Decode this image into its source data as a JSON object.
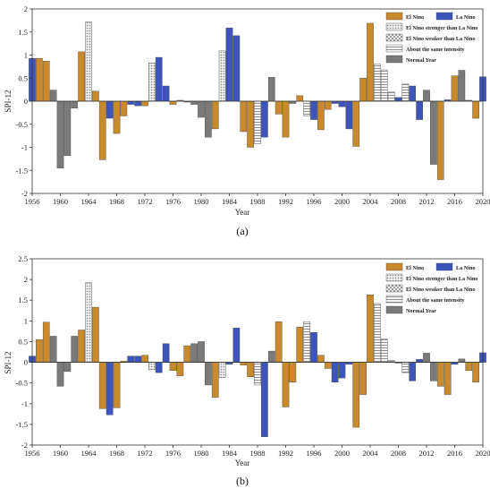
{
  "panel_labels": [
    "(a)",
    "(b)"
  ],
  "category_legend": [
    {
      "key": "elnino",
      "label": "El Nino",
      "color": "#C98A2E"
    },
    {
      "key": "lanina",
      "label": "La Nino",
      "color": "#3D55BA"
    },
    {
      "key": "stronger",
      "label": "El Nino stronger than La Nino",
      "color": "#D4D4D4",
      "pattern": "dots"
    },
    {
      "key": "weaker",
      "label": "El Nino weaker than La Nino",
      "color": "#BDBDBD",
      "pattern": "checker"
    },
    {
      "key": "same",
      "label": "About the same intensity",
      "color": "#CFCFCF",
      "pattern": "hlines"
    },
    {
      "key": "normal",
      "label": "Normal Year",
      "color": "#7A7A7A"
    }
  ],
  "chart_data": [
    {
      "type": "bar",
      "panel": "(a)",
      "xlabel": "Year",
      "ylabel": "SPI-12",
      "ylim": [
        -2,
        2
      ],
      "yticks": [
        -2,
        -1.5,
        -1,
        -0.5,
        0,
        0.5,
        1,
        1.5,
        2
      ],
      "xlim": [
        1956,
        2020
      ],
      "xticks": [
        1956,
        1960,
        1964,
        1968,
        1972,
        1976,
        1980,
        1984,
        1988,
        1992,
        1996,
        2000,
        2004,
        2008,
        2012,
        2016,
        2020
      ],
      "bars": [
        {
          "year": 1956,
          "value": 0.93,
          "category": "lanina"
        },
        {
          "year": 1957,
          "value": 0.93,
          "category": "elnino"
        },
        {
          "year": 1958,
          "value": 0.87,
          "category": "elnino"
        },
        {
          "year": 1959,
          "value": 0.24,
          "category": "normal"
        },
        {
          "year": 1960,
          "value": -1.45,
          "category": "normal"
        },
        {
          "year": 1961,
          "value": -1.18,
          "category": "normal"
        },
        {
          "year": 1962,
          "value": -0.15,
          "category": "normal"
        },
        {
          "year": 1963,
          "value": 1.07,
          "category": "elnino"
        },
        {
          "year": 1964,
          "value": 1.72,
          "category": "stronger"
        },
        {
          "year": 1965,
          "value": 0.22,
          "category": "elnino"
        },
        {
          "year": 1966,
          "value": -1.27,
          "category": "elnino"
        },
        {
          "year": 1967,
          "value": -0.37,
          "category": "lanina"
        },
        {
          "year": 1968,
          "value": -0.7,
          "category": "elnino"
        },
        {
          "year": 1969,
          "value": -0.32,
          "category": "elnino"
        },
        {
          "year": 1970,
          "value": -0.07,
          "category": "lanina"
        },
        {
          "year": 1971,
          "value": -0.1,
          "category": "lanina"
        },
        {
          "year": 1972,
          "value": -0.1,
          "category": "elnino"
        },
        {
          "year": 1973,
          "value": 0.83,
          "category": "stronger"
        },
        {
          "year": 1974,
          "value": 0.95,
          "category": "lanina"
        },
        {
          "year": 1975,
          "value": 0.33,
          "category": "lanina"
        },
        {
          "year": 1976,
          "value": -0.07,
          "category": "elnino"
        },
        {
          "year": 1977,
          "value": 0.02,
          "category": "normal"
        },
        {
          "year": 1978,
          "value": -0.02,
          "category": "normal"
        },
        {
          "year": 1979,
          "value": -0.07,
          "category": "normal"
        },
        {
          "year": 1980,
          "value": -0.35,
          "category": "normal"
        },
        {
          "year": 1981,
          "value": -0.78,
          "category": "normal"
        },
        {
          "year": 1982,
          "value": -0.6,
          "category": "elnino"
        },
        {
          "year": 1983,
          "value": 1.09,
          "category": "stronger"
        },
        {
          "year": 1984,
          "value": 1.59,
          "category": "lanina"
        },
        {
          "year": 1985,
          "value": 1.42,
          "category": "lanina"
        },
        {
          "year": 1986,
          "value": -0.66,
          "category": "elnino"
        },
        {
          "year": 1987,
          "value": -1.0,
          "category": "elnino"
        },
        {
          "year": 1988,
          "value": -0.92,
          "category": "same"
        },
        {
          "year": 1989,
          "value": -0.78,
          "category": "lanina"
        },
        {
          "year": 1990,
          "value": 0.52,
          "category": "normal"
        },
        {
          "year": 1991,
          "value": -0.28,
          "category": "elnino"
        },
        {
          "year": 1992,
          "value": -0.78,
          "category": "elnino"
        },
        {
          "year": 1993,
          "value": -0.05,
          "category": "normal"
        },
        {
          "year": 1994,
          "value": 0.12,
          "category": "elnino"
        },
        {
          "year": 1995,
          "value": -0.32,
          "category": "same"
        },
        {
          "year": 1996,
          "value": -0.4,
          "category": "lanina"
        },
        {
          "year": 1997,
          "value": -0.62,
          "category": "elnino"
        },
        {
          "year": 1998,
          "value": -0.18,
          "category": "elnino"
        },
        {
          "year": 1999,
          "value": -0.05,
          "category": "lanina"
        },
        {
          "year": 2000,
          "value": -0.12,
          "category": "lanina"
        },
        {
          "year": 2001,
          "value": -0.6,
          "category": "lanina"
        },
        {
          "year": 2002,
          "value": -0.98,
          "category": "elnino"
        },
        {
          "year": 2003,
          "value": 0.5,
          "category": "elnino"
        },
        {
          "year": 2004,
          "value": 1.69,
          "category": "elnino"
        },
        {
          "year": 2005,
          "value": 0.8,
          "category": "same"
        },
        {
          "year": 2006,
          "value": 0.68,
          "category": "same"
        },
        {
          "year": 2007,
          "value": 0.2,
          "category": "same"
        },
        {
          "year": 2008,
          "value": 0.08,
          "category": "lanina"
        },
        {
          "year": 2009,
          "value": 0.37,
          "category": "same"
        },
        {
          "year": 2010,
          "value": 0.33,
          "category": "lanina"
        },
        {
          "year": 2011,
          "value": -0.4,
          "category": "lanina"
        },
        {
          "year": 2012,
          "value": 0.24,
          "category": "normal"
        },
        {
          "year": 2013,
          "value": -1.37,
          "category": "normal"
        },
        {
          "year": 2014,
          "value": -1.7,
          "category": "elnino"
        },
        {
          "year": 2015,
          "value": 0.03,
          "category": "lanina"
        },
        {
          "year": 2016,
          "value": 0.55,
          "category": "elnino"
        },
        {
          "year": 2017,
          "value": 0.67,
          "category": "normal"
        },
        {
          "year": 2018,
          "value": 0.02,
          "category": "normal"
        },
        {
          "year": 2019,
          "value": -0.37,
          "category": "elnino"
        },
        {
          "year": 2020,
          "value": 0.53,
          "category": "lanina"
        }
      ]
    },
    {
      "type": "bar",
      "panel": "(b)",
      "xlabel": "Year",
      "ylabel": "SPI-12",
      "ylim": [
        -2,
        2.5
      ],
      "yticks": [
        -2,
        -1.5,
        -1,
        -0.5,
        0,
        0.5,
        1,
        1.5,
        2,
        2.5
      ],
      "xlim": [
        1956,
        2020
      ],
      "xticks": [
        1956,
        1960,
        1964,
        1968,
        1972,
        1976,
        1980,
        1984,
        1988,
        1992,
        1996,
        2000,
        2004,
        2008,
        2012,
        2016,
        2020
      ],
      "bars": [
        {
          "year": 1956,
          "value": 0.15,
          "category": "lanina"
        },
        {
          "year": 1957,
          "value": 0.55,
          "category": "elnino"
        },
        {
          "year": 1958,
          "value": 0.97,
          "category": "elnino"
        },
        {
          "year": 1959,
          "value": 0.63,
          "category": "normal"
        },
        {
          "year": 1960,
          "value": -0.58,
          "category": "normal"
        },
        {
          "year": 1961,
          "value": -0.22,
          "category": "normal"
        },
        {
          "year": 1962,
          "value": 0.63,
          "category": "normal"
        },
        {
          "year": 1963,
          "value": 0.78,
          "category": "elnino"
        },
        {
          "year": 1964,
          "value": 1.92,
          "category": "stronger"
        },
        {
          "year": 1965,
          "value": 1.33,
          "category": "elnino"
        },
        {
          "year": 1966,
          "value": -1.12,
          "category": "elnino"
        },
        {
          "year": 1967,
          "value": -1.27,
          "category": "lanina"
        },
        {
          "year": 1968,
          "value": -1.1,
          "category": "elnino"
        },
        {
          "year": 1969,
          "value": 0.03,
          "category": "elnino"
        },
        {
          "year": 1970,
          "value": 0.15,
          "category": "lanina"
        },
        {
          "year": 1971,
          "value": 0.15,
          "category": "lanina"
        },
        {
          "year": 1972,
          "value": 0.17,
          "category": "elnino"
        },
        {
          "year": 1973,
          "value": -0.18,
          "category": "stronger"
        },
        {
          "year": 1974,
          "value": -0.25,
          "category": "lanina"
        },
        {
          "year": 1975,
          "value": 0.45,
          "category": "lanina"
        },
        {
          "year": 1976,
          "value": -0.2,
          "category": "elnino"
        },
        {
          "year": 1977,
          "value": -0.33,
          "category": "elnino"
        },
        {
          "year": 1978,
          "value": 0.4,
          "category": "elnino"
        },
        {
          "year": 1979,
          "value": 0.45,
          "category": "normal"
        },
        {
          "year": 1980,
          "value": 0.5,
          "category": "normal"
        },
        {
          "year": 1981,
          "value": -0.55,
          "category": "normal"
        },
        {
          "year": 1982,
          "value": -0.85,
          "category": "elnino"
        },
        {
          "year": 1983,
          "value": -0.37,
          "category": "stronger"
        },
        {
          "year": 1984,
          "value": -0.05,
          "category": "lanina"
        },
        {
          "year": 1985,
          "value": 0.83,
          "category": "lanina"
        },
        {
          "year": 1986,
          "value": -0.07,
          "category": "elnino"
        },
        {
          "year": 1987,
          "value": -0.35,
          "category": "elnino"
        },
        {
          "year": 1988,
          "value": -0.55,
          "category": "same"
        },
        {
          "year": 1989,
          "value": -1.8,
          "category": "lanina"
        },
        {
          "year": 1990,
          "value": 0.27,
          "category": "normal"
        },
        {
          "year": 1991,
          "value": 0.98,
          "category": "elnino"
        },
        {
          "year": 1992,
          "value": -1.08,
          "category": "elnino"
        },
        {
          "year": 1993,
          "value": -0.48,
          "category": "elnino"
        },
        {
          "year": 1994,
          "value": 0.85,
          "category": "elnino"
        },
        {
          "year": 1995,
          "value": 0.98,
          "category": "same"
        },
        {
          "year": 1996,
          "value": 0.72,
          "category": "lanina"
        },
        {
          "year": 1997,
          "value": 0.17,
          "category": "elnino"
        },
        {
          "year": 1998,
          "value": -0.15,
          "category": "elnino"
        },
        {
          "year": 1999,
          "value": -0.48,
          "category": "lanina"
        },
        {
          "year": 2000,
          "value": -0.38,
          "category": "lanina"
        },
        {
          "year": 2001,
          "value": -0.05,
          "category": "lanina"
        },
        {
          "year": 2002,
          "value": -1.57,
          "category": "elnino"
        },
        {
          "year": 2003,
          "value": -0.78,
          "category": "elnino"
        },
        {
          "year": 2004,
          "value": 1.63,
          "category": "elnino"
        },
        {
          "year": 2005,
          "value": 1.42,
          "category": "same"
        },
        {
          "year": 2006,
          "value": 0.57,
          "category": "same"
        },
        {
          "year": 2007,
          "value": 0.05,
          "category": "same"
        },
        {
          "year": 2008,
          "value": -0.02,
          "category": "lanina"
        },
        {
          "year": 2009,
          "value": -0.25,
          "category": "same"
        },
        {
          "year": 2010,
          "value": -0.45,
          "category": "lanina"
        },
        {
          "year": 2011,
          "value": 0.07,
          "category": "lanina"
        },
        {
          "year": 2012,
          "value": 0.22,
          "category": "normal"
        },
        {
          "year": 2013,
          "value": -0.45,
          "category": "normal"
        },
        {
          "year": 2014,
          "value": -0.58,
          "category": "elnino"
        },
        {
          "year": 2015,
          "value": -0.78,
          "category": "elnino"
        },
        {
          "year": 2016,
          "value": -0.05,
          "category": "lanina"
        },
        {
          "year": 2017,
          "value": 0.08,
          "category": "normal"
        },
        {
          "year": 2018,
          "value": -0.2,
          "category": "elnino"
        },
        {
          "year": 2019,
          "value": -0.48,
          "category": "elnino"
        },
        {
          "year": 2020,
          "value": 0.23,
          "category": "lanina"
        }
      ]
    }
  ]
}
